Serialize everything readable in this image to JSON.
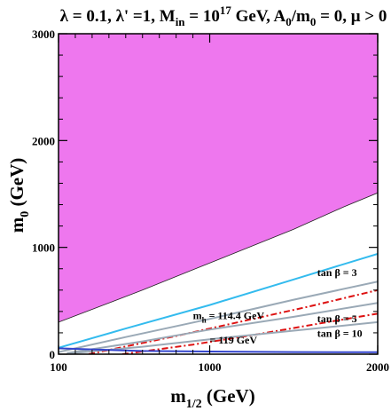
{
  "chart_data": {
    "type": "line",
    "title": "λ = 0.1, λ' =1, M_in = 10^17 GeV, A_0/m_0 = 0, μ > 0",
    "title_parts": [
      "λ = 0.1, λ' =1, M",
      "in",
      " = 10",
      "17",
      " GeV, A",
      "0",
      "/m",
      "0",
      " = 0, μ > 0"
    ],
    "xlabel": "m_1/2 (GeV)",
    "xlabel_parts": [
      "m",
      "1/2",
      " (GeV)"
    ],
    "ylabel": "m_0 (GeV)",
    "ylabel_parts": [
      "m",
      "0",
      " (GeV)"
    ],
    "xlim": [
      100,
      2000
    ],
    "ylim": [
      0,
      3000
    ],
    "x_ticks": [
      100,
      1000,
      2000
    ],
    "y_ticks": [
      0,
      1000,
      2000,
      3000
    ],
    "grid": false,
    "regions": [
      {
        "name": "excluded",
        "color": "#ee77ee",
        "boundary": [
          [
            100,
            300
          ],
          [
            300,
            420
          ],
          [
            600,
            600
          ],
          [
            900,
            790
          ],
          [
            1200,
            980
          ],
          [
            1500,
            1170
          ],
          [
            1800,
            1380
          ],
          [
            2000,
            1510
          ]
        ]
      }
    ],
    "series": [
      {
        "name": "cyan",
        "color": "#33bbee",
        "style": "solid",
        "x": [
          100,
          500,
          1000,
          1500,
          2000
        ],
        "y": [
          60,
          240,
          460,
          700,
          940
        ]
      },
      {
        "name": "grey-top",
        "color": "#9aa9b6",
        "style": "solid",
        "x": [
          100,
          500,
          1000,
          1500,
          2000
        ],
        "y": [
          20,
          160,
          330,
          510,
          680
        ]
      },
      {
        "name": "red-mh-114.4",
        "color": "#dd1111",
        "style": "dashdot",
        "x": [
          280,
          800,
          1200,
          1600,
          2000
        ],
        "y": [
          0,
          170,
          310,
          450,
          600
        ]
      },
      {
        "name": "grey-mid",
        "color": "#9aa9b6",
        "style": "solid",
        "x": [
          150,
          600,
          1000,
          1500,
          2000
        ],
        "y": [
          10,
          120,
          230,
          350,
          480
        ]
      },
      {
        "name": "red-mh-119",
        "color": "#dd1111",
        "style": "dashdot",
        "x": [
          480,
          900,
          1300,
          1700,
          2000
        ],
        "y": [
          0,
          90,
          190,
          300,
          380
        ]
      },
      {
        "name": "grey-low",
        "color": "#9aa9b6",
        "style": "solid",
        "x": [
          150,
          600,
          1000,
          1500,
          2000
        ],
        "y": [
          5,
          70,
          140,
          220,
          300
        ]
      },
      {
        "name": "blue-floor",
        "color": "#3344cc",
        "style": "solid",
        "x": [
          100,
          300,
          600,
          1000,
          1500,
          2000
        ],
        "y": [
          55,
          45,
          30,
          25,
          20,
          18
        ]
      }
    ],
    "annotations": [
      {
        "text": "tan β = 3",
        "x": 1640,
        "y": 730
      },
      {
        "parts": [
          "m",
          "h",
          " = 114.4 GeV"
        ],
        "text": "m_h = 114.4 GeV",
        "x": 900,
        "y": 330
      },
      {
        "text": "tan β = 5",
        "x": 1640,
        "y": 300
      },
      {
        "text": "= 119 GeV",
        "x": 1000,
        "y": 100
      },
      {
        "text": "tan β = 10",
        "x": 1640,
        "y": 160
      }
    ]
  }
}
